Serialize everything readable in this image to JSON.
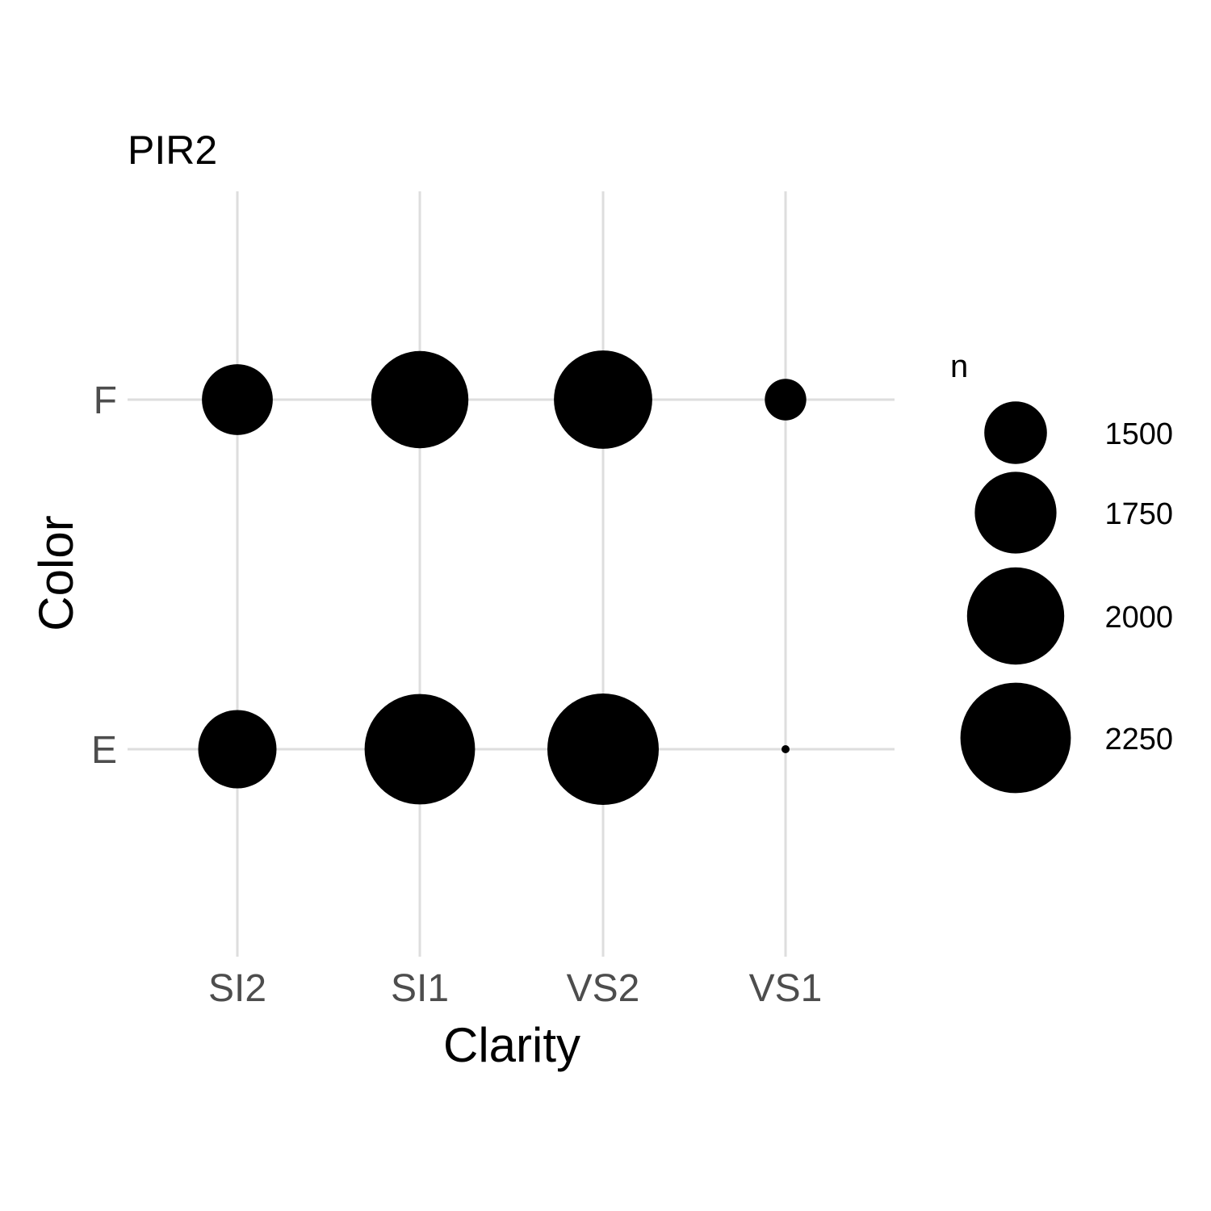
{
  "chart_data": {
    "type": "scatter",
    "title": "PIR2",
    "xlabel": "Clarity",
    "ylabel": "Color",
    "x_categories": [
      "SI2",
      "SI1",
      "VS2",
      "VS1"
    ],
    "y_categories": [
      "E",
      "F"
    ],
    "size_variable": "n",
    "points": [
      {
        "x": "SI2",
        "y": "F",
        "n": 1600
      },
      {
        "x": "SI1",
        "y": "F",
        "n": 2000
      },
      {
        "x": "VS2",
        "y": "F",
        "n": 2020
      },
      {
        "x": "VS1",
        "y": "F",
        "n": 1300
      },
      {
        "x": "SI2",
        "y": "E",
        "n": 1700
      },
      {
        "x": "SI1",
        "y": "E",
        "n": 2250
      },
      {
        "x": "VS2",
        "y": "E",
        "n": 2270
      },
      {
        "x": "VS1",
        "y": "E",
        "n": 1150
      }
    ],
    "legend": {
      "title": "n",
      "position": "right",
      "breaks": [
        1500,
        1750,
        2000,
        2250
      ]
    },
    "grid": true,
    "bubble_color": "#000000",
    "grid_color": "#dedede"
  }
}
